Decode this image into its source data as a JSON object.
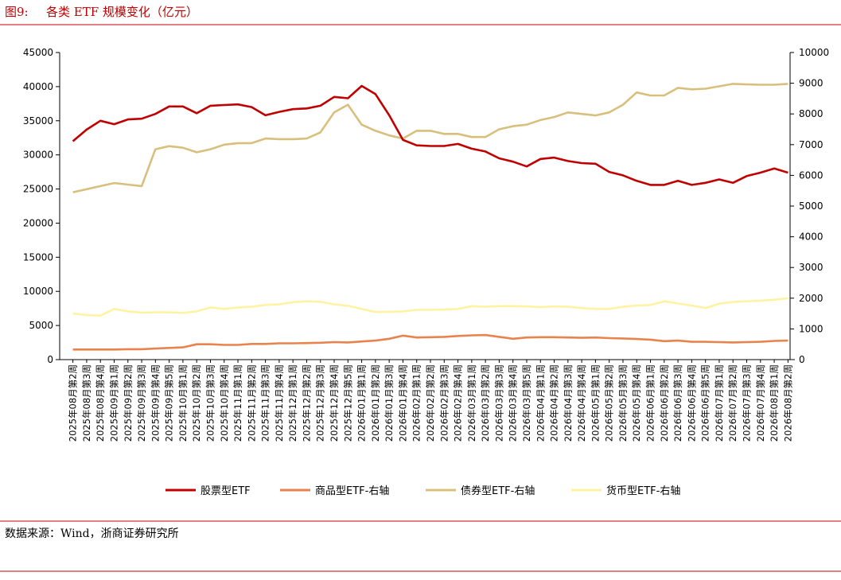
{
  "figure_label": "图9:",
  "source": "数据来源：Wind，浙商证券研究所",
  "chart_data": {
    "type": "line",
    "title": "各类 ETF 规模变化（亿元）",
    "categories": [
      "2025年08月第2周",
      "2025年08月第3周",
      "2025年08月第4周",
      "2025年09月第1周",
      "2025年09月第2周",
      "2025年09月第3周",
      "2025年09月第4周",
      "2025年09月第5周",
      "2025年10月第1周",
      "2025年10月第2周",
      "2025年10月第3周",
      "2025年10月第4周",
      "2025年11月第1周",
      "2025年11月第2周",
      "2025年11月第3周",
      "2025年11月第4周",
      "2025年12月第1周",
      "2025年12月第2周",
      "2025年12月第3周",
      "2025年12月第4周",
      "2025年12月第5周",
      "2026年01月第1周",
      "2026年01月第2周",
      "2026年01月第3周",
      "2026年01月第4周",
      "2026年02月第1周",
      "2026年02月第2周",
      "2026年02月第3周",
      "2026年02月第4周",
      "2026年03月第1周",
      "2026年03月第2周",
      "2026年03月第3周",
      "2026年03月第4周",
      "2026年03月第5周",
      "2026年04月第1周",
      "2026年04月第2周",
      "2026年04月第3周",
      "2026年04月第4周",
      "2026年05月第1周",
      "2026年05月第2周",
      "2026年05月第3周",
      "2026年05月第4周",
      "2026年06月第1周",
      "2026年06月第2周",
      "2026年06月第3周",
      "2026年06月第4周",
      "2026年06月第5周",
      "2026年07月第1周",
      "2026年07月第2周",
      "2026年07月第3周",
      "2026年07月第4周",
      "2026年08月第1周",
      "2026年08月第2周"
    ],
    "series": [
      {
        "name": "股票型ETF",
        "color": "#c00000",
        "values": [
          32000,
          33700,
          35000,
          34500,
          35200,
          35300,
          36000,
          37100,
          37100,
          36100,
          37200,
          37300,
          37400,
          37000,
          35800,
          36300,
          36700,
          36800,
          37200,
          38500,
          38300,
          40100,
          38900,
          35800,
          32200,
          31400,
          31300,
          31300,
          31600,
          30900,
          30500,
          29500,
          29000,
          28300,
          29400,
          29600,
          29100,
          28800,
          28700,
          27500,
          27000,
          26200,
          25600,
          25600,
          26200,
          25600,
          25900,
          26400,
          25900,
          26900,
          27400,
          28000,
          27400
        ]
      },
      {
        "name": "商品型ETF-右轴",
        "color": "#e9834e",
        "axis": "y2",
        "values": [
          330,
          330,
          330,
          330,
          340,
          340,
          360,
          380,
          400,
          500,
          500,
          480,
          480,
          510,
          510,
          530,
          530,
          540,
          550,
          570,
          560,
          590,
          620,
          680,
          780,
          720,
          730,
          740,
          770,
          790,
          800,
          740,
          680,
          720,
          730,
          730,
          720,
          710,
          720,
          700,
          690,
          670,
          650,
          600,
          620,
          580,
          580,
          570,
          560,
          570,
          580,
          610,
          620
        ]
      },
      {
        "name": "债券型ETF-右轴",
        "color": "#d8c07c",
        "axis": "y2",
        "values": [
          5450,
          5550,
          5650,
          5750,
          5700,
          5650,
          6850,
          6950,
          6900,
          6750,
          6850,
          7000,
          7050,
          7050,
          7200,
          7180,
          7180,
          7200,
          7400,
          8050,
          8300,
          7650,
          7450,
          7300,
          7200,
          7450,
          7450,
          7350,
          7350,
          7250,
          7250,
          7500,
          7600,
          7650,
          7800,
          7900,
          8050,
          8000,
          7950,
          8050,
          8300,
          8700,
          8600,
          8600,
          8850,
          8800,
          8820,
          8900,
          8980,
          8960,
          8950,
          8950,
          8980
        ]
      },
      {
        "name": "货币型ETF-右轴",
        "color": "#fff3a3",
        "axis": "y2",
        "values": [
          1500,
          1450,
          1430,
          1650,
          1570,
          1530,
          1540,
          1540,
          1520,
          1570,
          1700,
          1650,
          1700,
          1720,
          1780,
          1800,
          1870,
          1900,
          1880,
          1800,
          1750,
          1650,
          1550,
          1560,
          1570,
          1620,
          1620,
          1630,
          1650,
          1740,
          1720,
          1740,
          1740,
          1730,
          1710,
          1730,
          1720,
          1680,
          1650,
          1650,
          1720,
          1760,
          1780,
          1900,
          1830,
          1760,
          1680,
          1820,
          1880,
          1900,
          1920,
          1950,
          2000
        ]
      }
    ],
    "ylim": [
      0,
      45000
    ],
    "yticks": [
      0,
      5000,
      10000,
      15000,
      20000,
      25000,
      30000,
      35000,
      40000,
      45000
    ],
    "y2lim": [
      0,
      10000
    ],
    "y2ticks": [
      0,
      1000,
      2000,
      3000,
      4000,
      5000,
      6000,
      7000,
      8000,
      9000,
      10000
    ],
    "legend": "bottom"
  }
}
